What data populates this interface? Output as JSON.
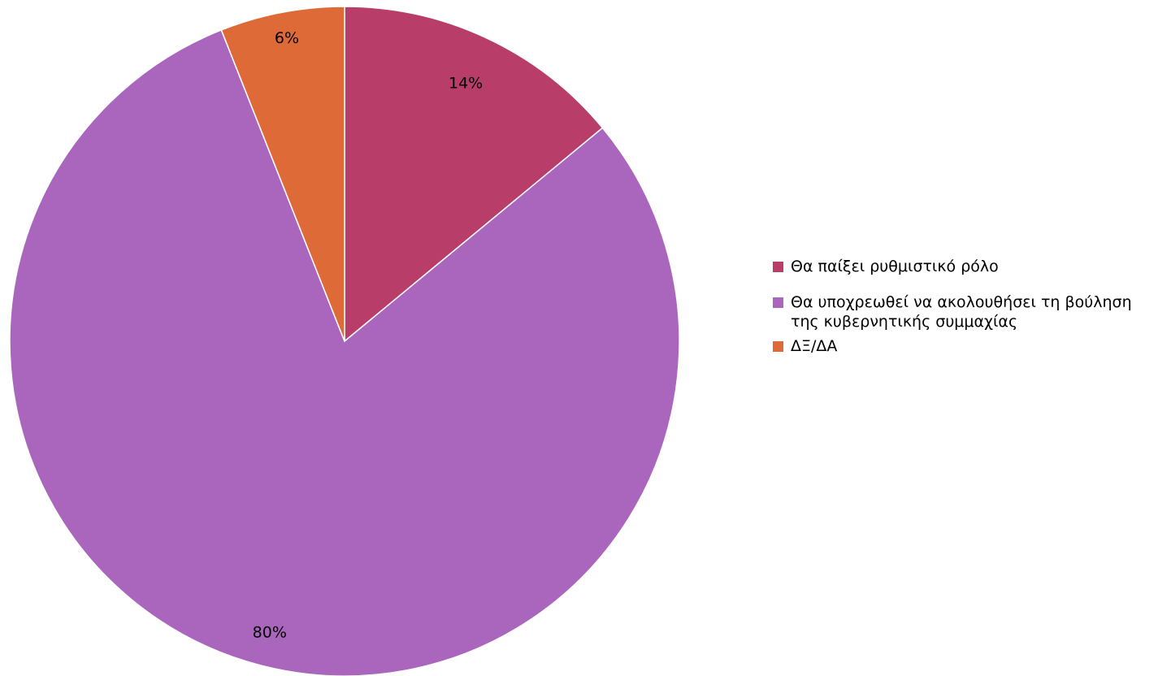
{
  "chart_data": {
    "type": "pie",
    "title": "",
    "categories": [
      "Θα παίξει ρυθμιστικό ρόλο",
      "Θα υποχρεωθεί να ακολουθήσει τη βούληση της κυβερνητικής συμμαχίας",
      "ΔΞ/ΔΑ"
    ],
    "values": [
      14,
      80,
      6
    ],
    "value_labels": [
      "14%",
      "80%",
      "6%"
    ],
    "colors": [
      "#b93d69",
      "#a966bc",
      "#de6b37"
    ],
    "legend_position": "right",
    "start_angle": "top, clockwise"
  },
  "legend": {
    "items": [
      {
        "label": "Θα παίξει ρυθμιστικό ρόλο",
        "color": "#b93d69"
      },
      {
        "label": "Θα υποχρεωθεί να ακολουθήσει τη βούληση της κυβερνητικής συμμαχίας",
        "color": "#a966bc"
      },
      {
        "label": "ΔΞ/ΔΑ",
        "color": "#de6b37"
      }
    ]
  }
}
